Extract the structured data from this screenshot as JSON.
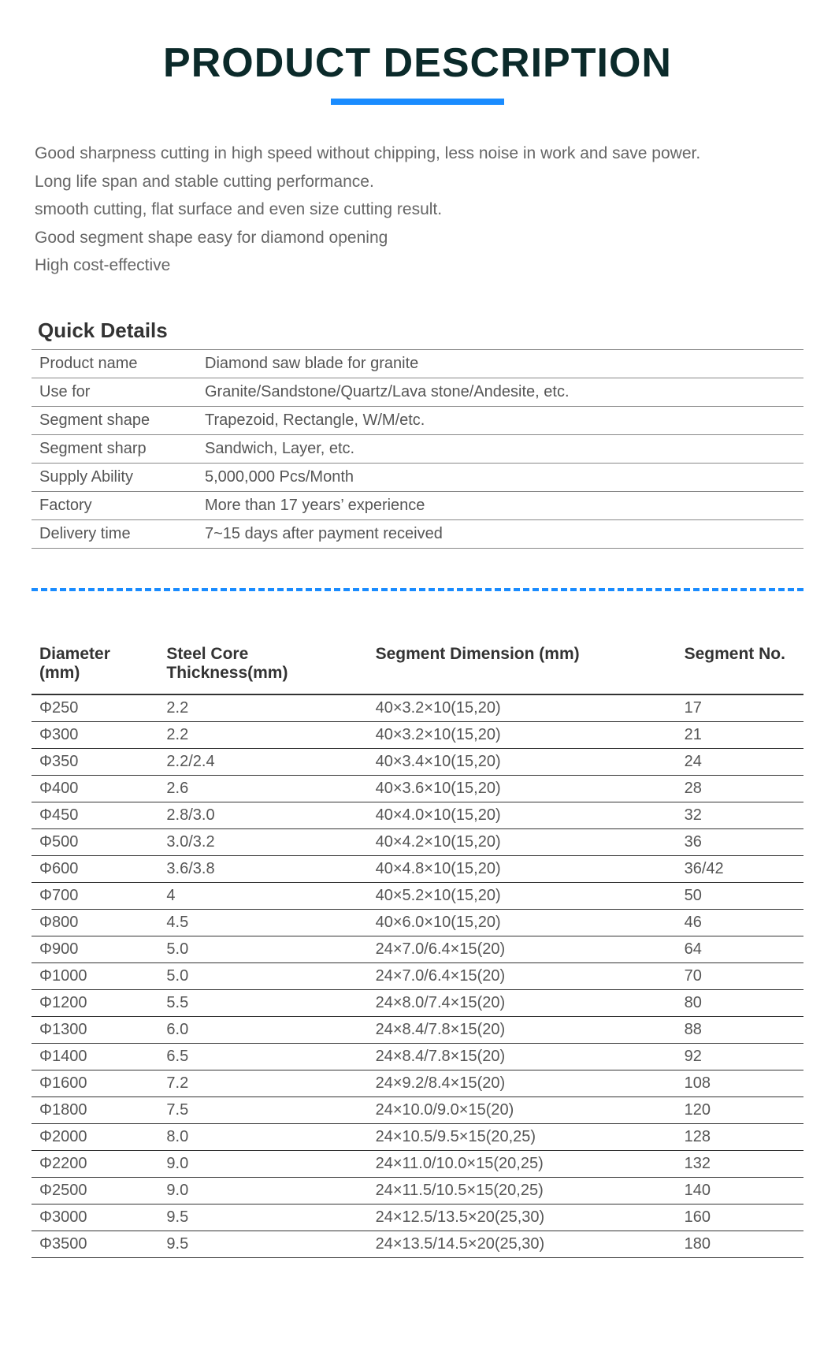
{
  "title": "PRODUCT DESCRIPTION",
  "description": [
    "Good sharpness cutting in high speed without chipping, less noise in work and save power.",
    "Long life span and stable cutting performance.",
    "smooth cutting, flat surface and even size cutting result.",
    "Good segment shape easy for diamond opening",
    "High cost-effective"
  ],
  "quick_title": "Quick Details",
  "quick_details": [
    {
      "label": "Product name",
      "value": "Diamond saw blade for granite"
    },
    {
      "label": "Use for",
      "value": "Granite/Sandstone/Quartz/Lava stone/Andesite, etc."
    },
    {
      "label": "Segment shape",
      "value": "Trapezoid, Rectangle, W/M/etc."
    },
    {
      "label": "Segment sharp",
      "value": "Sandwich, Layer, etc."
    },
    {
      "label": "Supply Ability",
      "value": "5,000,000 Pcs/Month"
    },
    {
      "label": "Factory",
      "value": "More than 17 years’ experience"
    },
    {
      "label": "Delivery time",
      "value": "7~15 days after payment received"
    }
  ],
  "spec_headers": {
    "diameter": "Diameter (mm)",
    "core": "Steel Core Thickness(mm)",
    "segment": "Segment Dimension (mm)",
    "no": "Segment No."
  },
  "spec_rows": [
    {
      "dia": "Φ250",
      "core": "2.2",
      "seg": "40×3.2×10(15,20)",
      "no": "17"
    },
    {
      "dia": "Φ300",
      "core": "2.2",
      "seg": "40×3.2×10(15,20)",
      "no": "21"
    },
    {
      "dia": "Φ350",
      "core": "2.2/2.4",
      "seg": "40×3.4×10(15,20)",
      "no": "24"
    },
    {
      "dia": "Φ400",
      "core": "2.6",
      "seg": "40×3.6×10(15,20)",
      "no": "28"
    },
    {
      "dia": "Φ450",
      "core": "2.8/3.0",
      "seg": "40×4.0×10(15,20)",
      "no": "32"
    },
    {
      "dia": "Φ500",
      "core": "3.0/3.2",
      "seg": "40×4.2×10(15,20)",
      "no": "36"
    },
    {
      "dia": "Φ600",
      "core": "3.6/3.8",
      "seg": "40×4.8×10(15,20)",
      "no": "36/42"
    },
    {
      "dia": "Φ700",
      "core": "4",
      "seg": "40×5.2×10(15,20)",
      "no": "50"
    },
    {
      "dia": "Φ800",
      "core": "4.5",
      "seg": "40×6.0×10(15,20)",
      "no": "46"
    },
    {
      "dia": "Φ900",
      "core": "5.0",
      "seg": "24×7.0/6.4×15(20)",
      "no": "64"
    },
    {
      "dia": "Φ1000",
      "core": "5.0",
      "seg": "24×7.0/6.4×15(20)",
      "no": "70"
    },
    {
      "dia": "Φ1200",
      "core": "5.5",
      "seg": "24×8.0/7.4×15(20)",
      "no": "80"
    },
    {
      "dia": "Φ1300",
      "core": "6.0",
      "seg": "24×8.4/7.8×15(20)",
      "no": "88"
    },
    {
      "dia": "Φ1400",
      "core": "6.5",
      "seg": "24×8.4/7.8×15(20)",
      "no": "92"
    },
    {
      "dia": "Φ1600",
      "core": "7.2",
      "seg": "24×9.2/8.4×15(20)",
      "no": "108"
    },
    {
      "dia": "Φ1800",
      "core": "7.5",
      "seg": "24×10.0/9.0×15(20)",
      "no": "120"
    },
    {
      "dia": "Φ2000",
      "core": "8.0",
      "seg": "24×10.5/9.5×15(20,25)",
      "no": "128"
    },
    {
      "dia": "Φ2200",
      "core": "9.0",
      "seg": "24×11.0/10.0×15(20,25)",
      "no": "132"
    },
    {
      "dia": "Φ2500",
      "core": "9.0",
      "seg": "24×11.5/10.5×15(20,25)",
      "no": "140"
    },
    {
      "dia": "Φ3000",
      "core": "9.5",
      "seg": "24×12.5/13.5×20(25,30)",
      "no": "160"
    },
    {
      "dia": "Φ3500",
      "core": "9.5",
      "seg": "24×13.5/14.5×20(25,30)",
      "no": "180"
    }
  ],
  "colors": {
    "title": "#0b2a2a",
    "accent": "#1a8cff",
    "text": "#555",
    "border": "#888",
    "border_dark": "#333"
  }
}
